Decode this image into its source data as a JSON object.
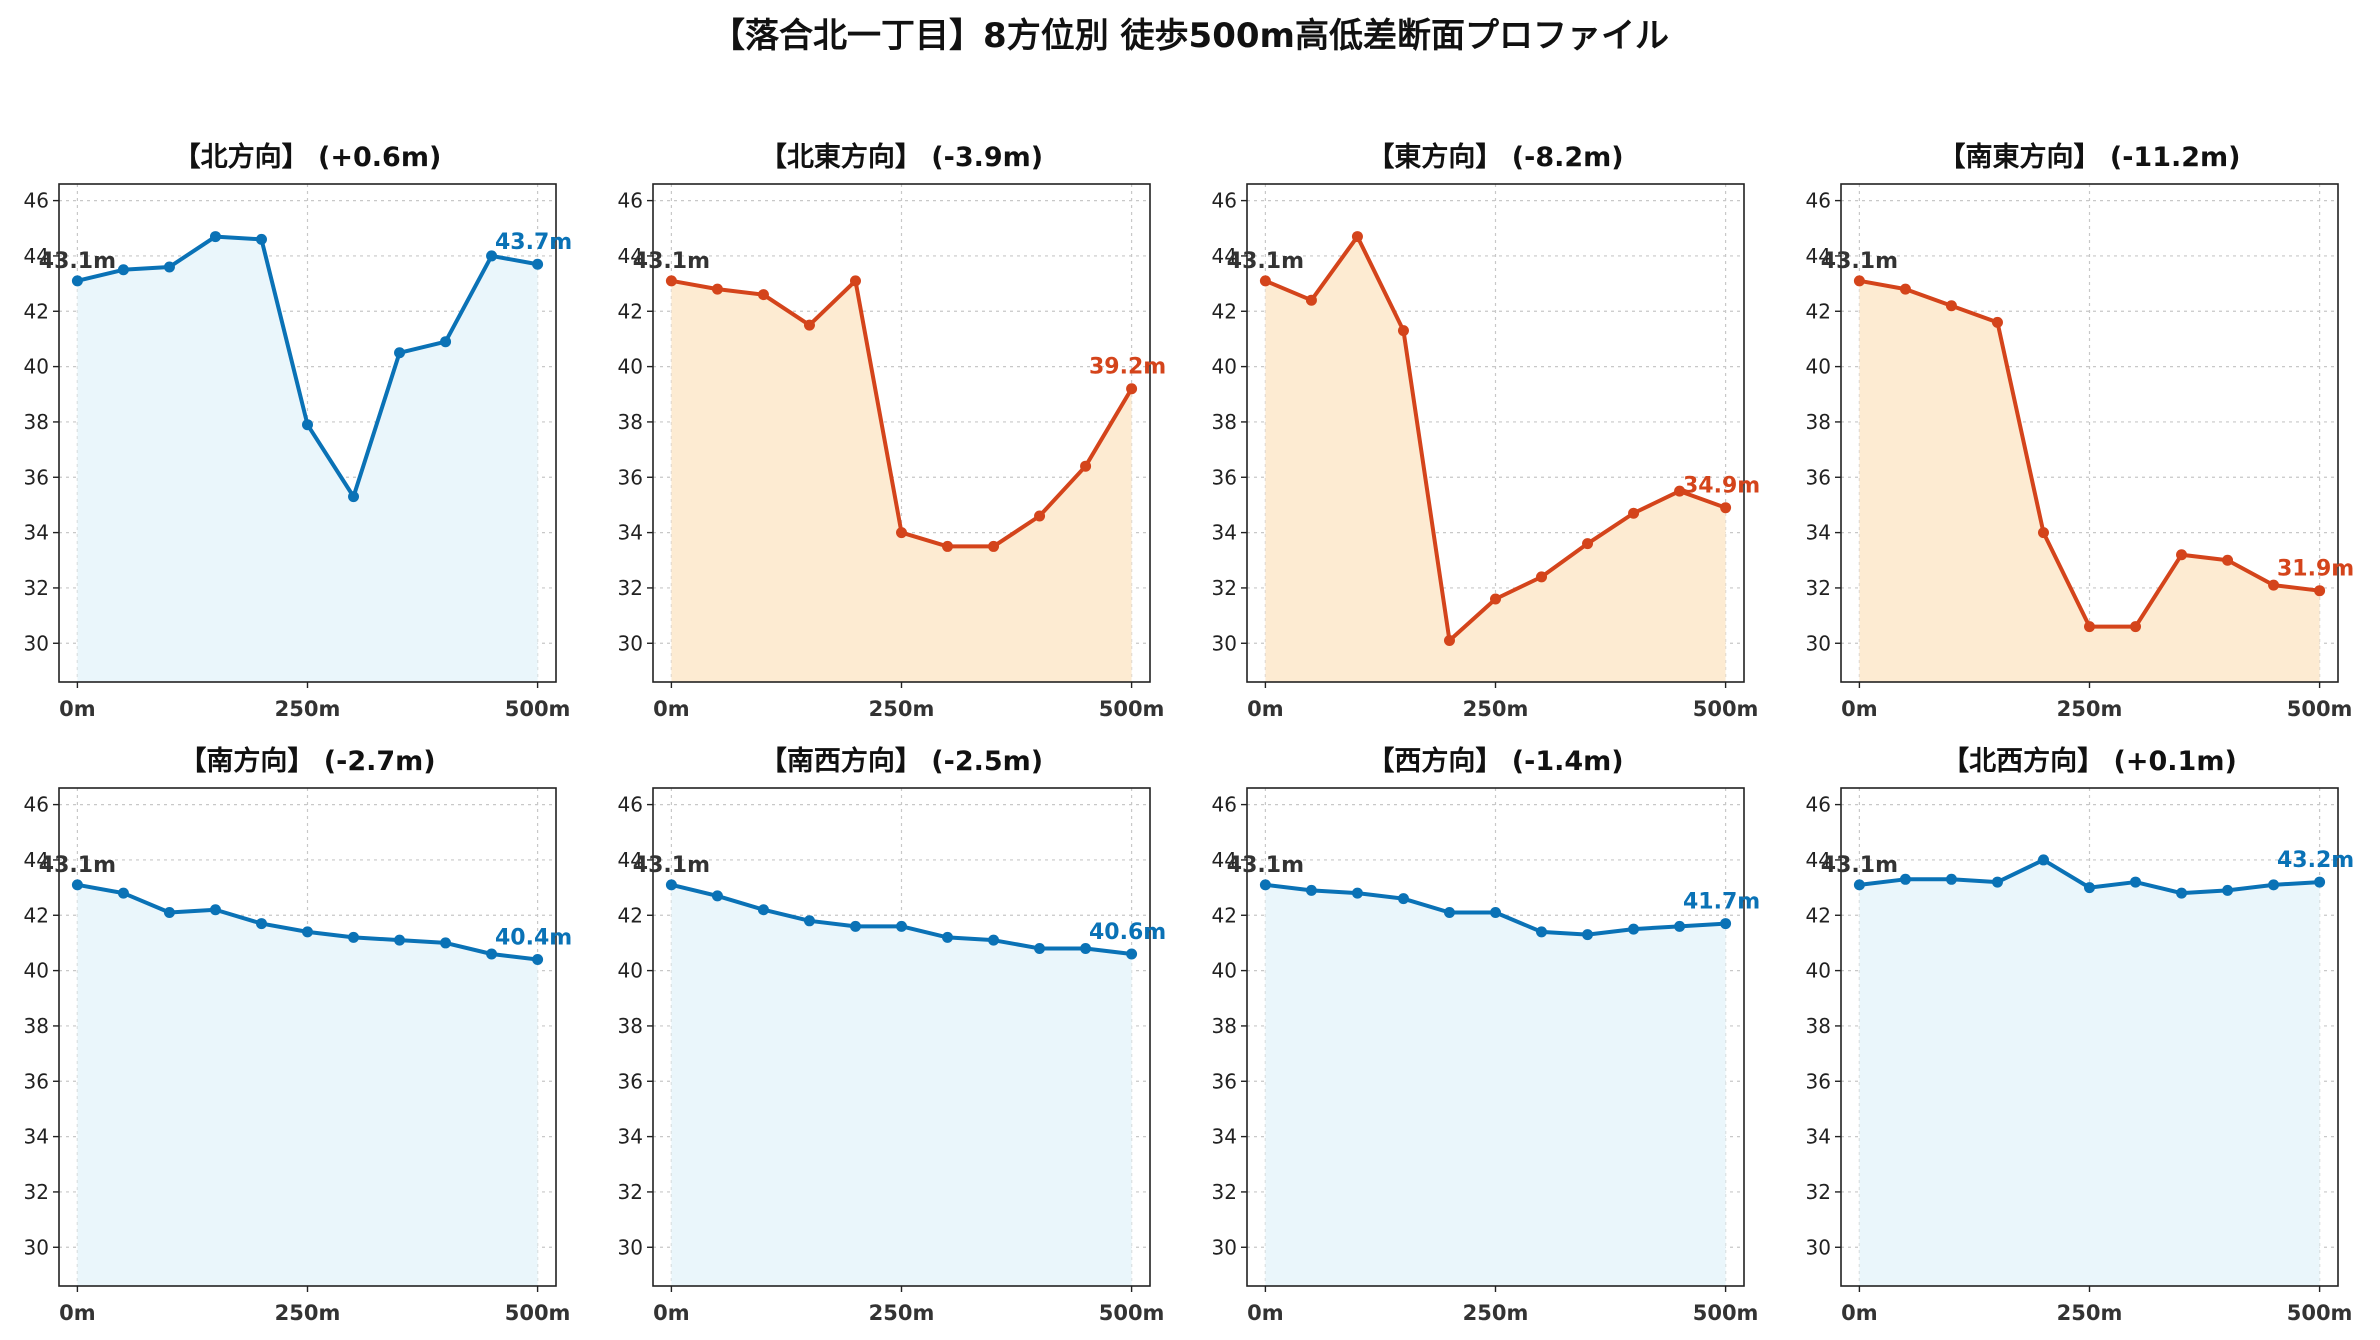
{
  "title": "【落合北一丁目】8方位別 徒歩500m高低差断面プロファイル",
  "colors": {
    "up_line": "#0a72b6",
    "up_fill": "#eaf6fb",
    "down_line": "#d4441b",
    "down_fill": "#fdebd2",
    "start_label": "#333333"
  },
  "chart_data": [
    {
      "type": "area",
      "title": "【北方向】 (+0.6m)",
      "trend": "up",
      "x": [
        0,
        50,
        100,
        150,
        200,
        250,
        300,
        350,
        400,
        450,
        500
      ],
      "y": [
        43.1,
        43.5,
        43.6,
        44.7,
        44.6,
        37.9,
        35.3,
        40.5,
        40.9,
        44.0,
        43.7
      ],
      "start_label": "43.1m",
      "end_label": "43.7m",
      "ylim": [
        28.6,
        46.6
      ],
      "yticks": [
        30,
        32,
        34,
        36,
        38,
        40,
        42,
        44,
        46
      ],
      "xticks": [
        0,
        250,
        500
      ],
      "xticklabels": [
        "0m",
        "250m",
        "500m"
      ],
      "grid": true
    },
    {
      "type": "area",
      "title": "【北東方向】 (-3.9m)",
      "trend": "down",
      "x": [
        0,
        50,
        100,
        150,
        200,
        250,
        300,
        350,
        400,
        450,
        500
      ],
      "y": [
        43.1,
        42.8,
        42.6,
        41.5,
        43.1,
        34.0,
        33.5,
        33.5,
        34.6,
        36.4,
        39.2
      ],
      "start_label": "43.1m",
      "end_label": "39.2m",
      "ylim": [
        28.6,
        46.6
      ],
      "yticks": [
        30,
        32,
        34,
        36,
        38,
        40,
        42,
        44,
        46
      ],
      "xticks": [
        0,
        250,
        500
      ],
      "xticklabels": [
        "0m",
        "250m",
        "500m"
      ],
      "grid": true
    },
    {
      "type": "area",
      "title": "【東方向】 (-8.2m)",
      "trend": "down",
      "x": [
        0,
        50,
        100,
        150,
        200,
        250,
        300,
        350,
        400,
        450,
        500
      ],
      "y": [
        43.1,
        42.4,
        44.7,
        41.3,
        30.1,
        31.6,
        32.4,
        33.6,
        34.7,
        35.5,
        34.9
      ],
      "start_label": "43.1m",
      "end_label": "34.9m",
      "ylim": [
        28.6,
        46.6
      ],
      "yticks": [
        30,
        32,
        34,
        36,
        38,
        40,
        42,
        44,
        46
      ],
      "xticks": [
        0,
        250,
        500
      ],
      "xticklabels": [
        "0m",
        "250m",
        "500m"
      ],
      "grid": true
    },
    {
      "type": "area",
      "title": "【南東方向】 (-11.2m)",
      "trend": "down",
      "x": [
        0,
        50,
        100,
        150,
        200,
        250,
        300,
        350,
        400,
        450,
        500
      ],
      "y": [
        43.1,
        42.8,
        42.2,
        41.6,
        34.0,
        30.6,
        30.6,
        33.2,
        33.0,
        32.1,
        31.9
      ],
      "start_label": "43.1m",
      "end_label": "31.9m",
      "ylim": [
        28.6,
        46.6
      ],
      "yticks": [
        30,
        32,
        34,
        36,
        38,
        40,
        42,
        44,
        46
      ],
      "xticks": [
        0,
        250,
        500
      ],
      "xticklabels": [
        "0m",
        "250m",
        "500m"
      ],
      "grid": true
    },
    {
      "type": "area",
      "title": "【南方向】 (-2.7m)",
      "trend": "up",
      "x": [
        0,
        50,
        100,
        150,
        200,
        250,
        300,
        350,
        400,
        450,
        500
      ],
      "y": [
        43.1,
        42.8,
        42.1,
        42.2,
        41.7,
        41.4,
        41.2,
        41.1,
        41.0,
        40.6,
        40.4
      ],
      "start_label": "43.1m",
      "end_label": "40.4m",
      "ylim": [
        28.6,
        46.6
      ],
      "yticks": [
        30,
        32,
        34,
        36,
        38,
        40,
        42,
        44,
        46
      ],
      "xticks": [
        0,
        250,
        500
      ],
      "xticklabels": [
        "0m",
        "250m",
        "500m"
      ],
      "grid": true
    },
    {
      "type": "area",
      "title": "【南西方向】 (-2.5m)",
      "trend": "up",
      "x": [
        0,
        50,
        100,
        150,
        200,
        250,
        300,
        350,
        400,
        450,
        500
      ],
      "y": [
        43.1,
        42.7,
        42.2,
        41.8,
        41.6,
        41.6,
        41.2,
        41.1,
        40.8,
        40.8,
        40.6
      ],
      "start_label": "43.1m",
      "end_label": "40.6m",
      "ylim": [
        28.6,
        46.6
      ],
      "yticks": [
        30,
        32,
        34,
        36,
        38,
        40,
        42,
        44,
        46
      ],
      "xticks": [
        0,
        250,
        500
      ],
      "xticklabels": [
        "0m",
        "250m",
        "500m"
      ],
      "grid": true
    },
    {
      "type": "area",
      "title": "【西方向】 (-1.4m)",
      "trend": "up",
      "x": [
        0,
        50,
        100,
        150,
        200,
        250,
        300,
        350,
        400,
        450,
        500
      ],
      "y": [
        43.1,
        42.9,
        42.8,
        42.6,
        42.1,
        42.1,
        41.4,
        41.3,
        41.5,
        41.6,
        41.7
      ],
      "start_label": "43.1m",
      "end_label": "41.7m",
      "ylim": [
        28.6,
        46.6
      ],
      "yticks": [
        30,
        32,
        34,
        36,
        38,
        40,
        42,
        44,
        46
      ],
      "xticks": [
        0,
        250,
        500
      ],
      "xticklabels": [
        "0m",
        "250m",
        "500m"
      ],
      "grid": true
    },
    {
      "type": "area",
      "title": "【北西方向】 (+0.1m)",
      "trend": "up",
      "x": [
        0,
        50,
        100,
        150,
        200,
        250,
        300,
        350,
        400,
        450,
        500
      ],
      "y": [
        43.1,
        43.3,
        43.3,
        43.2,
        44.0,
        43.0,
        43.2,
        42.8,
        42.9,
        43.1,
        43.2
      ],
      "start_label": "43.1m",
      "end_label": "43.2m",
      "ylim": [
        28.6,
        46.6
      ],
      "yticks": [
        30,
        32,
        34,
        36,
        38,
        40,
        42,
        44,
        46
      ],
      "xticks": [
        0,
        250,
        500
      ],
      "xticklabels": [
        "0m",
        "250m",
        "500m"
      ],
      "grid": true
    }
  ]
}
